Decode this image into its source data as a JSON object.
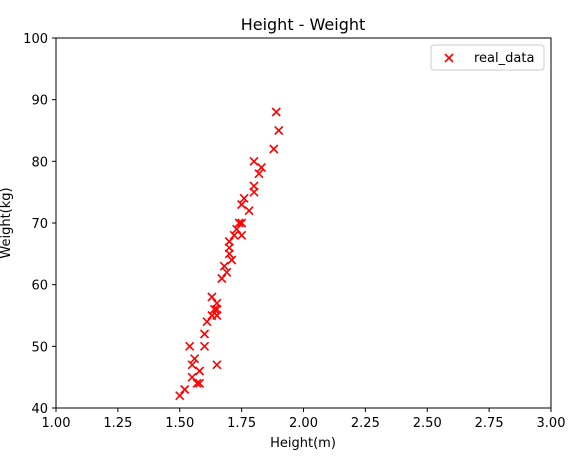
{
  "chart_data": {
    "type": "scatter",
    "title": "Height - Weight",
    "xlabel": "Height(m)",
    "ylabel": "Weight(kg)",
    "xlim": [
      1.0,
      3.0
    ],
    "ylim": [
      40,
      100
    ],
    "xticks": [
      "1.00",
      "1.25",
      "1.50",
      "1.75",
      "2.00",
      "2.25",
      "2.50",
      "2.75",
      "3.00"
    ],
    "yticks": [
      "40",
      "50",
      "60",
      "70",
      "80",
      "90",
      "100"
    ],
    "grid": false,
    "legend_position": "top-right",
    "series": [
      {
        "name": "real_data",
        "color": "#ff0000",
        "marker": "x",
        "x": [
          1.5,
          1.52,
          1.54,
          1.55,
          1.55,
          1.56,
          1.57,
          1.58,
          1.58,
          1.6,
          1.6,
          1.61,
          1.63,
          1.63,
          1.64,
          1.65,
          1.65,
          1.65,
          1.65,
          1.67,
          1.68,
          1.69,
          1.7,
          1.7,
          1.7,
          1.71,
          1.72,
          1.73,
          1.74,
          1.75,
          1.75,
          1.75,
          1.76,
          1.78,
          1.8,
          1.8,
          1.8,
          1.82,
          1.83,
          1.88,
          1.89,
          1.9
        ],
        "y": [
          42,
          43,
          50,
          47,
          45,
          48,
          44,
          46,
          44,
          52,
          50,
          54,
          58,
          55,
          56,
          57,
          55,
          47,
          56,
          61,
          63,
          62,
          65,
          66,
          67,
          64,
          68,
          69,
          70,
          73,
          70,
          68,
          74,
          72,
          75,
          76,
          80,
          78,
          79,
          82,
          88,
          85
        ]
      }
    ]
  }
}
